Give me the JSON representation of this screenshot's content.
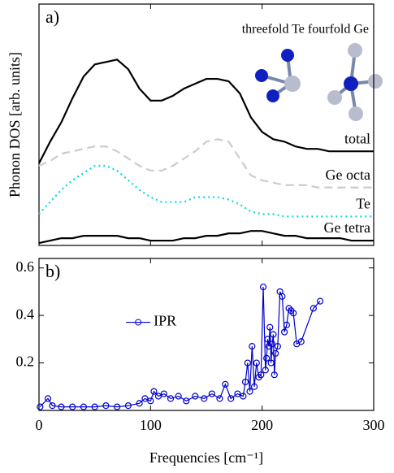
{
  "chart_data": [
    {
      "type": "line",
      "title": "a)",
      "y_label": "Phonon DOS [arb. units]",
      "annotation": "threefold Te fourfold Ge",
      "x": [
        0,
        10,
        20,
        30,
        40,
        50,
        60,
        70,
        80,
        90,
        100,
        110,
        120,
        130,
        140,
        150,
        160,
        170,
        180,
        190,
        200,
        210,
        220,
        230,
        240,
        250,
        260,
        270,
        280,
        290,
        300
      ],
      "xlim": [
        0,
        300
      ],
      "xticks": [
        0,
        100,
        200,
        300
      ],
      "ylim": [
        0,
        10
      ],
      "series": [
        {
          "name": "total",
          "color": "#000000",
          "dash": "solid",
          "values": [
            3.4,
            4.3,
            5.1,
            6.1,
            7.0,
            7.5,
            7.6,
            7.7,
            7.3,
            6.5,
            6.0,
            6.0,
            6.2,
            6.5,
            6.7,
            6.9,
            6.9,
            6.8,
            6.3,
            5.3,
            4.7,
            4.4,
            4.3,
            4.1,
            4.0,
            4.0,
            3.9,
            3.9,
            3.9,
            3.9,
            3.9
          ]
        },
        {
          "name": "Ge octa",
          "color": "#cccccc",
          "dash": "dashed",
          "values": [
            3.3,
            3.5,
            3.8,
            3.9,
            4.0,
            4.1,
            4.1,
            3.9,
            3.6,
            3.3,
            3.1,
            3.1,
            3.3,
            3.6,
            3.9,
            4.3,
            4.4,
            4.3,
            3.6,
            2.9,
            2.7,
            2.6,
            2.5,
            2.5,
            2.5,
            2.4,
            2.4,
            2.4,
            2.4,
            2.4,
            2.4
          ]
        },
        {
          "name": "Te",
          "color": "#00dddd",
          "dash": "dotted",
          "values": [
            1.3,
            1.8,
            2.3,
            2.7,
            3.0,
            3.3,
            3.3,
            3.1,
            2.7,
            2.3,
            2.0,
            1.8,
            1.8,
            1.8,
            2.0,
            2.0,
            2.0,
            1.9,
            1.7,
            1.4,
            1.3,
            1.3,
            1.2,
            1.2,
            1.2,
            1.2,
            1.2,
            1.2,
            1.2,
            1.2,
            1.2
          ]
        },
        {
          "name": "Ge tetra",
          "color": "#000000",
          "dash": "solid",
          "values": [
            0.1,
            0.2,
            0.3,
            0.3,
            0.4,
            0.4,
            0.4,
            0.4,
            0.3,
            0.3,
            0.2,
            0.2,
            0.2,
            0.3,
            0.3,
            0.4,
            0.4,
            0.5,
            0.5,
            0.6,
            0.6,
            0.5,
            0.4,
            0.4,
            0.3,
            0.3,
            0.3,
            0.3,
            0.2,
            0.2,
            0.2
          ]
        }
      ]
    },
    {
      "type": "line",
      "title": "b)",
      "x_label": "Frequencies [cm⁻¹]",
      "legend": "center left",
      "x": [
        1,
        8,
        12,
        20,
        30,
        40,
        50,
        60,
        70,
        80,
        90,
        95,
        100,
        103,
        107,
        112,
        118,
        125,
        132,
        140,
        148,
        155,
        162,
        167,
        172,
        178,
        183,
        185,
        187,
        189,
        191,
        193,
        195,
        197,
        199,
        201,
        203,
        204,
        205,
        206,
        207,
        208,
        209,
        210,
        211,
        212,
        214,
        216,
        218,
        220,
        222,
        224,
        226,
        228,
        231,
        235,
        246,
        252
      ],
      "xlim": [
        0,
        300
      ],
      "xticks": [
        0,
        100,
        200,
        300
      ],
      "ylim": [
        0,
        0.64
      ],
      "yticks": [
        0.2,
        0.4,
        0.6
      ],
      "series": [
        {
          "name": "IPR",
          "color": "#0000cc",
          "marker": "circle",
          "values": [
            0.015,
            0.05,
            0.02,
            0.015,
            0.015,
            0.015,
            0.015,
            0.02,
            0.015,
            0.02,
            0.03,
            0.05,
            0.04,
            0.08,
            0.06,
            0.07,
            0.05,
            0.06,
            0.04,
            0.06,
            0.05,
            0.07,
            0.05,
            0.11,
            0.05,
            0.07,
            0.06,
            0.12,
            0.2,
            0.08,
            0.27,
            0.1,
            0.2,
            0.14,
            0.15,
            0.52,
            0.17,
            0.22,
            0.3,
            0.27,
            0.35,
            0.2,
            0.28,
            0.32,
            0.15,
            0.24,
            0.27,
            0.5,
            0.48,
            0.33,
            0.36,
            0.43,
            0.42,
            0.41,
            0.28,
            0.29,
            0.43,
            0.46
          ]
        }
      ]
    }
  ]
}
